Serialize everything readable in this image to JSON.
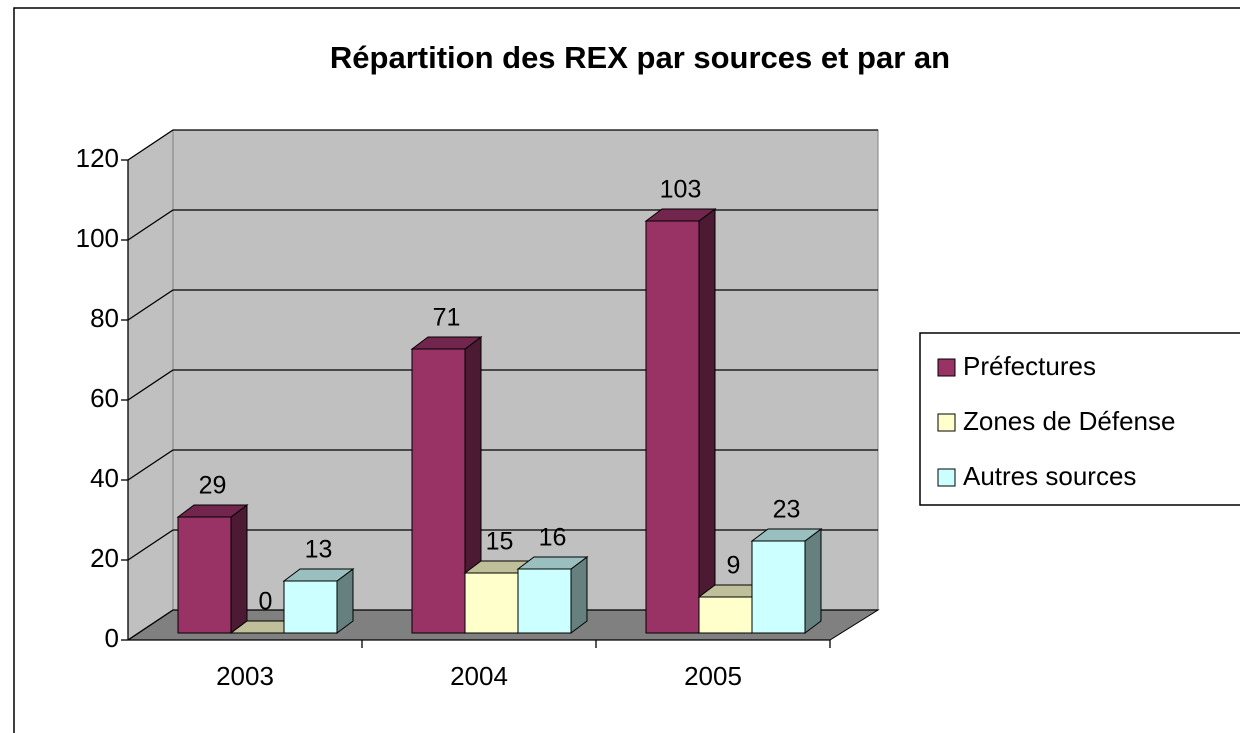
{
  "chart_data": {
    "type": "bar3d",
    "title": "Répartition des REX par sources et par an",
    "categories": [
      "2003",
      "2004",
      "2005"
    ],
    "series": [
      {
        "name": "Préfectures",
        "color": "#993366",
        "values": [
          29,
          71,
          103
        ]
      },
      {
        "name": "Zones de Défense",
        "color": "#ffffcc",
        "values": [
          0,
          15,
          9
        ]
      },
      {
        "name": "Autres sources",
        "color": "#ccffff",
        "values": [
          13,
          16,
          23
        ]
      }
    ],
    "ylim": [
      0,
      120
    ],
    "yticks": [
      0,
      20,
      40,
      60,
      80,
      100,
      120
    ],
    "grid": true,
    "legend": "right"
  }
}
